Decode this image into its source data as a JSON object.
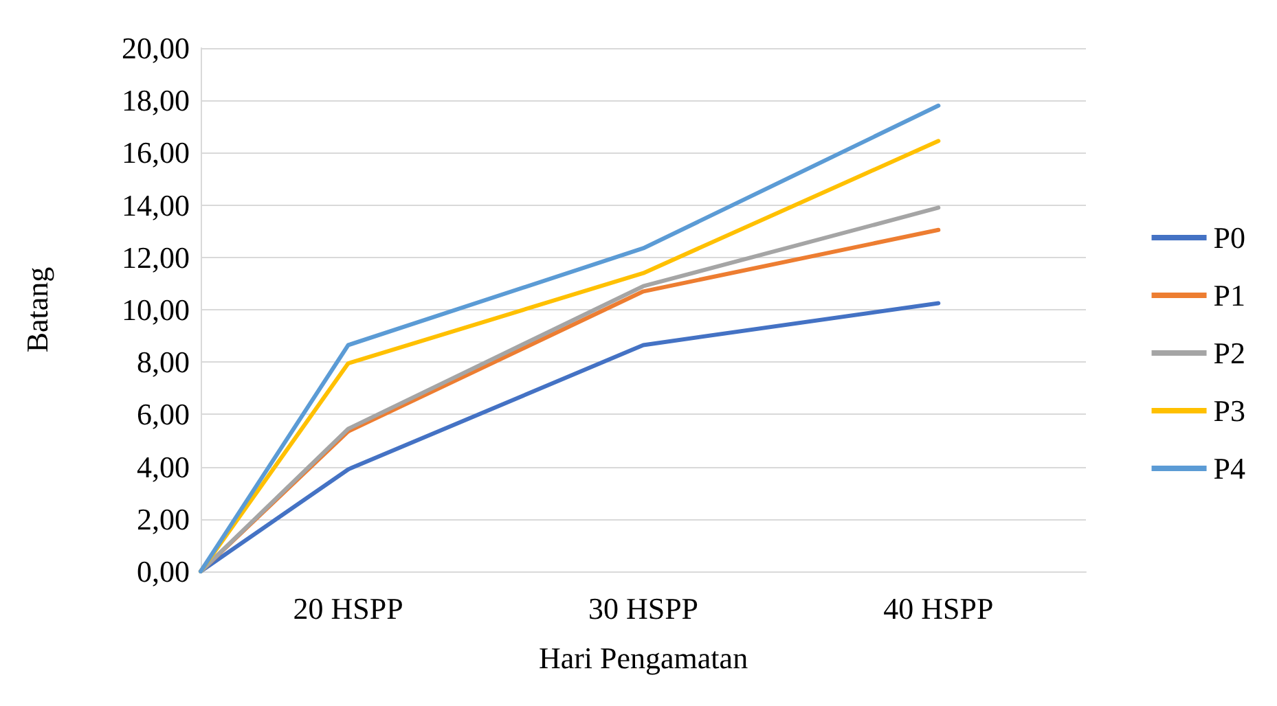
{
  "chart_data": {
    "type": "line",
    "xlabel": "Hari Pengamatan",
    "ylabel": "Batang",
    "x": [
      15,
      20,
      30,
      40
    ],
    "xlim": [
      15,
      45
    ],
    "xticks": [
      {
        "value": 20,
        "label": "20 HSPP"
      },
      {
        "value": 30,
        "label": "30 HSPP"
      },
      {
        "value": 40,
        "label": "40 HSPP"
      }
    ],
    "ylim": [
      0,
      20
    ],
    "yticks": [
      {
        "value": 0,
        "label": "0,00"
      },
      {
        "value": 2,
        "label": "2,00"
      },
      {
        "value": 4,
        "label": "4,00"
      },
      {
        "value": 6,
        "label": "6,00"
      },
      {
        "value": 8,
        "label": "8,00"
      },
      {
        "value": 10,
        "label": "10,00"
      },
      {
        "value": 12,
        "label": "12,00"
      },
      {
        "value": 14,
        "label": "14,00"
      },
      {
        "value": 16,
        "label": "16,00"
      },
      {
        "value": 18,
        "label": "18,00"
      },
      {
        "value": 20,
        "label": "20,00"
      }
    ],
    "series": [
      {
        "name": "P0",
        "color": "#4472c4",
        "values": [
          0,
          3.9,
          8.65,
          10.25
        ]
      },
      {
        "name": "P1",
        "color": "#ed7d31",
        "values": [
          0,
          5.35,
          10.7,
          13.05
        ]
      },
      {
        "name": "P2",
        "color": "#a5a5a5",
        "values": [
          0,
          5.45,
          10.9,
          13.9
        ]
      },
      {
        "name": "P3",
        "color": "#ffc000",
        "values": [
          0,
          7.95,
          11.4,
          16.45
        ]
      },
      {
        "name": "P4",
        "color": "#5b9bd5",
        "values": [
          0,
          8.65,
          12.35,
          17.8
        ]
      }
    ],
    "grid": "y",
    "legend": "right",
    "marker": "none",
    "line_style": "solid"
  }
}
